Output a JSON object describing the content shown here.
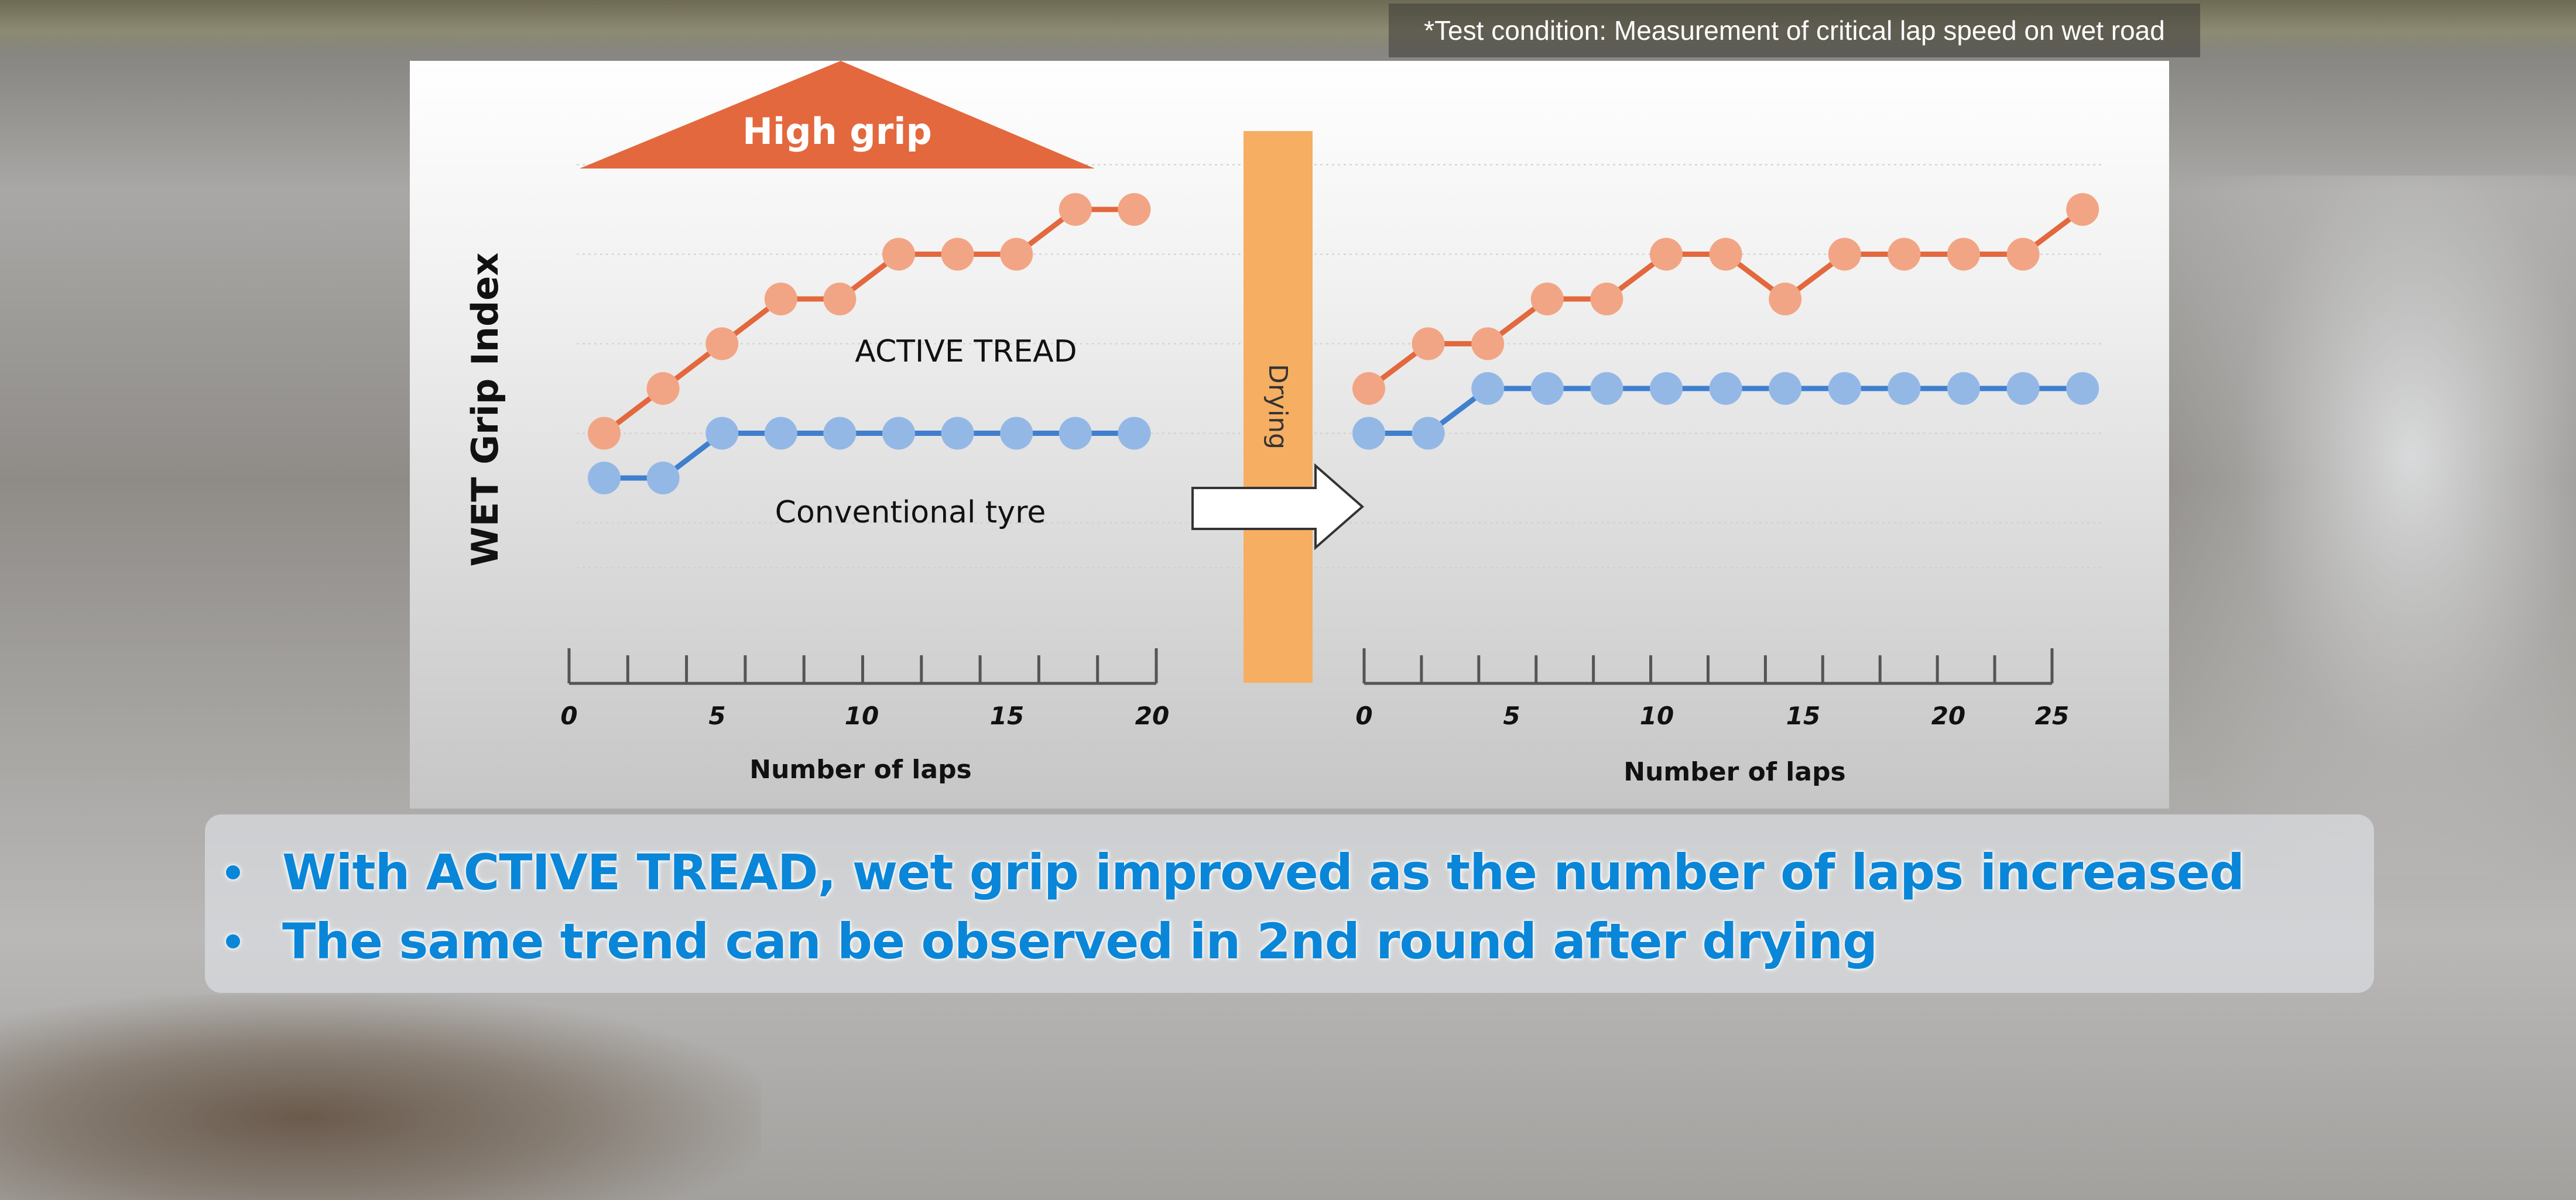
{
  "note": "*Test condition: Measurement of critical lap speed on wet road",
  "summary": {
    "bullets": [
      "With ACTIVE TREAD, wet grip improved as the number of laps increased",
      "The same trend can be observed in 2nd round after drying"
    ]
  },
  "colors": {
    "active_line": "#e3683d",
    "active_marker": "#f2a584",
    "conventional_line": "#3f7fce",
    "conventional_marker": "#94b8e6",
    "high_grip": "#e3683d",
    "drying_bar": "#f6ae62",
    "bullet_text": "#0a86d8"
  },
  "chart_data": [
    {
      "type": "line",
      "ylabel": "WET Grip Index",
      "xlabel": "Number of laps",
      "x_ticks": [
        0,
        5,
        10,
        15,
        20
      ],
      "xlim": [
        0,
        20
      ],
      "banner": "High grip",
      "series": [
        {
          "name": "ACTIVE TREAD",
          "x": [
            1,
            3,
            5,
            7,
            9,
            11,
            13,
            15,
            17,
            19
          ],
          "y": [
            1.0,
            1.5,
            2.0,
            2.5,
            2.5,
            3.0,
            3.0,
            3.0,
            3.5,
            3.5
          ]
        },
        {
          "name": "Conventional tyre",
          "x": [
            1,
            3,
            5,
            7,
            9,
            11,
            13,
            15,
            17,
            19
          ],
          "y": [
            0.5,
            0.5,
            1.0,
            1.0,
            1.0,
            1.0,
            1.0,
            1.0,
            1.0,
            1.0
          ]
        }
      ]
    },
    {
      "type": "line",
      "label": "Drying",
      "xlabel": "Number of laps",
      "x_ticks": [
        0,
        5,
        10,
        15,
        20,
        25
      ],
      "xlim": [
        0,
        25
      ],
      "series": [
        {
          "name": "ACTIVE TREAD",
          "x": [
            0.2,
            2.2,
            4.2,
            6.2,
            8.2,
            10.2,
            12.2,
            14.2,
            16.2,
            18.2,
            20.2,
            22.2,
            24.2
          ],
          "y": [
            1.5,
            2.0,
            2.0,
            2.5,
            2.5,
            3.0,
            3.0,
            2.5,
            3.0,
            3.0,
            3.0,
            3.0,
            3.5
          ]
        },
        {
          "name": "Conventional tyre",
          "x": [
            0.2,
            2.2,
            4.2,
            6.2,
            8.2,
            10.2,
            12.2,
            14.2,
            16.2,
            18.2,
            20.2,
            22.2,
            24.2
          ],
          "y": [
            1.0,
            1.0,
            1.5,
            1.5,
            1.5,
            1.5,
            1.5,
            1.5,
            1.5,
            1.5,
            1.5,
            1.5,
            1.5
          ]
        }
      ]
    }
  ]
}
